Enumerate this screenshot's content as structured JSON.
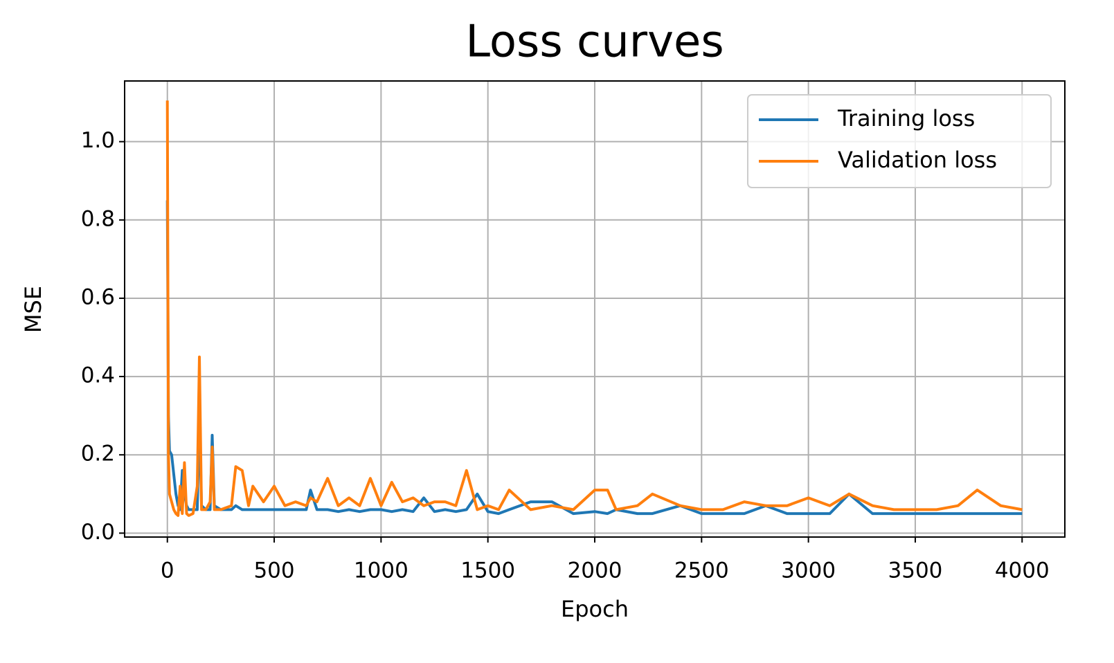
{
  "chart_data": {
    "type": "line",
    "title": "Loss curves",
    "x_label": "Epoch",
    "y_label": "MSE",
    "x": [
      0,
      5,
      10,
      20,
      30,
      40,
      50,
      60,
      70,
      80,
      90,
      100,
      120,
      140,
      150,
      160,
      180,
      200,
      210,
      220,
      250,
      300,
      320,
      350,
      380,
      400,
      450,
      500,
      550,
      600,
      650,
      670,
      700,
      750,
      800,
      850,
      900,
      950,
      1000,
      1050,
      1100,
      1150,
      1200,
      1250,
      1300,
      1350,
      1400,
      1450,
      1500,
      1550,
      1600,
      1700,
      1800,
      1900,
      2000,
      2060,
      2100,
      2200,
      2270,
      2400,
      2500,
      2600,
      2700,
      2800,
      2900,
      3000,
      3100,
      3190,
      3300,
      3400,
      3500,
      3600,
      3700,
      3790,
      3900,
      4000
    ],
    "series": [
      {
        "name": "Training loss",
        "color": "#1f77b4",
        "values": [
          0.85,
          0.3,
          0.21,
          0.2,
          0.15,
          0.1,
          0.07,
          0.06,
          0.16,
          0.1,
          0.07,
          0.06,
          0.06,
          0.06,
          0.3,
          0.07,
          0.06,
          0.06,
          0.25,
          0.07,
          0.06,
          0.06,
          0.07,
          0.06,
          0.06,
          0.06,
          0.06,
          0.06,
          0.06,
          0.06,
          0.06,
          0.11,
          0.06,
          0.06,
          0.055,
          0.06,
          0.055,
          0.06,
          0.06,
          0.055,
          0.06,
          0.055,
          0.09,
          0.055,
          0.06,
          0.055,
          0.06,
          0.1,
          0.055,
          0.05,
          0.06,
          0.08,
          0.08,
          0.05,
          0.055,
          0.05,
          0.06,
          0.05,
          0.05,
          0.07,
          0.05,
          0.05,
          0.05,
          0.07,
          0.05,
          0.05,
          0.05,
          0.1,
          0.05,
          0.05,
          0.05,
          0.05,
          0.05,
          0.05,
          0.05,
          0.05
        ]
      },
      {
        "name": "Validation loss",
        "color": "#ff7f0e",
        "values": [
          1.105,
          0.2,
          0.1,
          0.08,
          0.06,
          0.05,
          0.045,
          0.12,
          0.05,
          0.18,
          0.05,
          0.045,
          0.05,
          0.12,
          0.45,
          0.06,
          0.06,
          0.08,
          0.22,
          0.06,
          0.06,
          0.07,
          0.17,
          0.16,
          0.07,
          0.12,
          0.08,
          0.12,
          0.07,
          0.08,
          0.07,
          0.09,
          0.08,
          0.14,
          0.07,
          0.09,
          0.07,
          0.14,
          0.07,
          0.13,
          0.08,
          0.09,
          0.07,
          0.08,
          0.08,
          0.07,
          0.16,
          0.06,
          0.07,
          0.06,
          0.11,
          0.06,
          0.07,
          0.06,
          0.11,
          0.11,
          0.06,
          0.07,
          0.1,
          0.07,
          0.06,
          0.06,
          0.08,
          0.07,
          0.07,
          0.09,
          0.07,
          0.1,
          0.07,
          0.06,
          0.06,
          0.06,
          0.07,
          0.11,
          0.07,
          0.06
        ]
      }
    ],
    "xlim": [
      -200,
      4200
    ],
    "xticks": [
      0,
      500,
      1000,
      1500,
      2000,
      2500,
      3000,
      3500,
      4000
    ],
    "ylim": [
      -0.01,
      1.155
    ],
    "yticks": [
      {
        "value": 0,
        "label": "0.0"
      },
      0.2,
      0.4,
      0.6,
      0.8,
      {
        "value": 1,
        "label": "1.0"
      }
    ],
    "grid": true,
    "legend": "upper right"
  }
}
